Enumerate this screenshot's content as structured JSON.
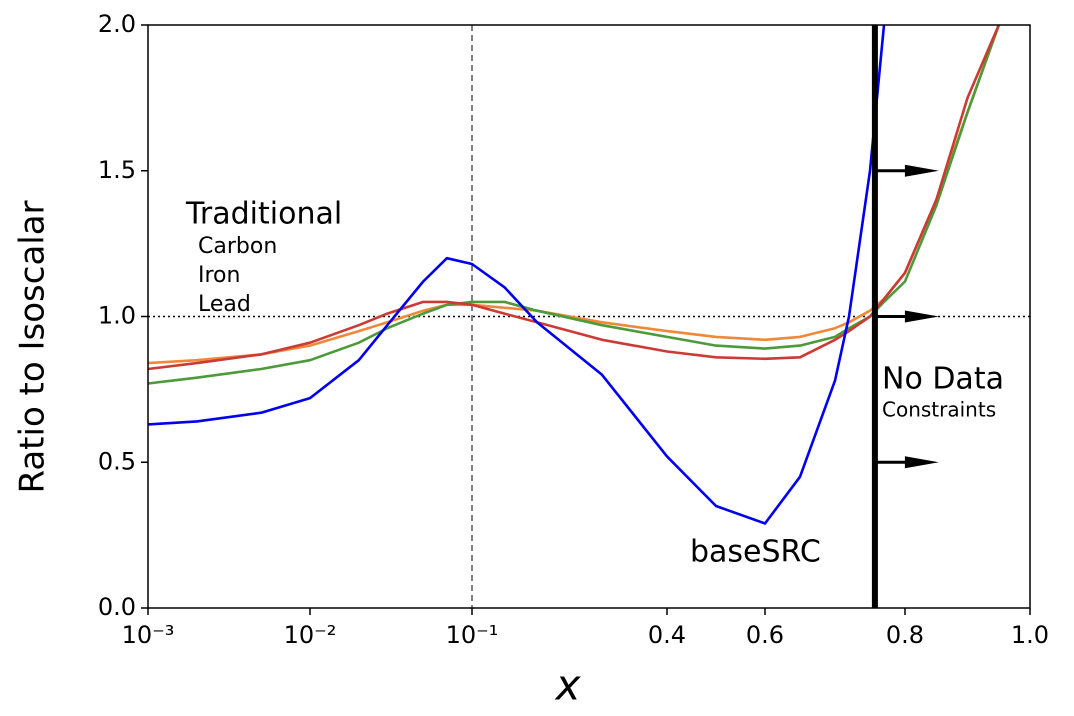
{
  "chart_data": {
    "type": "line",
    "xlabel": "x",
    "ylabel": "Ratio to Isoscalar",
    "legend_title": "Traditional",
    "annotations": [
      "No Data",
      "Constraints"
    ],
    "x": [
      0.001,
      0.002,
      0.005,
      0.01,
      0.02,
      0.03,
      0.05,
      0.07,
      0.1,
      0.15,
      0.2,
      0.3,
      0.4,
      0.5,
      0.6,
      0.65,
      0.7,
      0.72,
      0.75,
      0.77,
      0.8,
      0.85,
      0.9,
      0.95
    ],
    "series": [
      {
        "name": "Carbon",
        "color": "#f0883a",
        "values": [
          0.84,
          0.85,
          0.87,
          0.9,
          0.95,
          0.98,
          1.02,
          1.04,
          1.04,
          1.03,
          1.02,
          0.98,
          0.95,
          0.93,
          0.92,
          0.93,
          0.96,
          0.98,
          1.02,
          1.06,
          1.15,
          1.4,
          1.7,
          2.0
        ]
      },
      {
        "name": "Iron",
        "color": "#4c9a3a",
        "values": [
          0.77,
          0.79,
          0.82,
          0.85,
          0.91,
          0.96,
          1.01,
          1.04,
          1.05,
          1.05,
          1.02,
          0.97,
          0.93,
          0.9,
          0.89,
          0.9,
          0.93,
          0.96,
          1.0,
          1.05,
          1.12,
          1.38,
          1.7,
          2.0
        ]
      },
      {
        "name": "Lead",
        "color": "#cc3a35",
        "values": [
          0.82,
          0.84,
          0.87,
          0.91,
          0.97,
          1.01,
          1.05,
          1.05,
          1.04,
          1.01,
          0.98,
          0.92,
          0.88,
          0.86,
          0.855,
          0.86,
          0.92,
          0.95,
          1.0,
          1.06,
          1.15,
          1.4,
          1.75,
          2.0
        ]
      },
      {
        "name": "baseSRC",
        "color": "#0000ee",
        "values": [
          0.63,
          0.64,
          0.67,
          0.72,
          0.85,
          0.97,
          1.12,
          1.2,
          1.18,
          1.1,
          0.98,
          0.8,
          0.52,
          0.35,
          0.29,
          0.45,
          0.78,
          1.0,
          1.5,
          2.0,
          null,
          null,
          null,
          null
        ]
      }
    ],
    "xlim": [
      0.001,
      1.0
    ],
    "ylim": [
      0,
      2.0
    ],
    "xticks": [
      {
        "value": 0.001,
        "label": "10⁻³"
      },
      {
        "value": 0.01,
        "label": "10⁻²"
      },
      {
        "value": 0.1,
        "label": "10⁻¹"
      },
      0.4,
      0.6,
      0.8,
      {
        "value": 1.0,
        "label": "1.0"
      }
    ],
    "yticks": [
      {
        "value": 0,
        "label": "0.0"
      },
      {
        "value": 0.5,
        "label": "0.5"
      },
      {
        "value": 1.0,
        "label": "1.0"
      },
      {
        "value": 1.5,
        "label": "1.5"
      },
      {
        "value": 2.0,
        "label": "2.0"
      }
    ],
    "vline_dashed": 0.1,
    "hline_dotted": 1.0,
    "cutoff_x": 0.757,
    "arrow_y": [
      0.5,
      1.0,
      1.5
    ]
  }
}
